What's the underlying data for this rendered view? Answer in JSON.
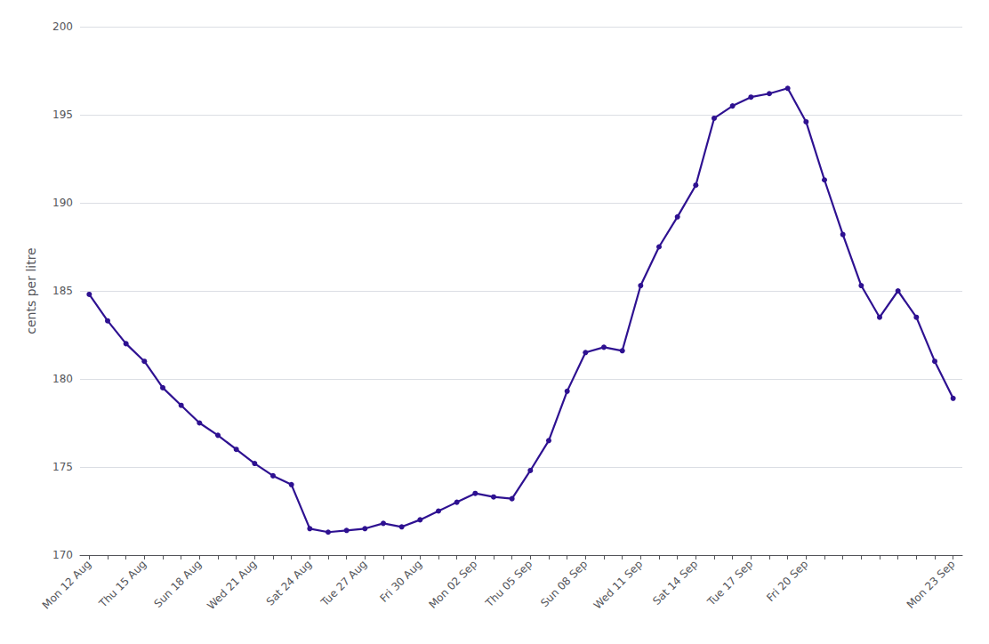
{
  "chart_data": {
    "type": "line",
    "ylabel": "cents per litre",
    "categories": [
      "Mon 12 Aug",
      null,
      null,
      "Thu 15 Aug",
      null,
      null,
      "Sun 18 Aug",
      null,
      null,
      "Wed 21 Aug",
      null,
      null,
      "Sat 24 Aug",
      null,
      null,
      "Tue 27 Aug",
      null,
      null,
      "Fri 30 Aug",
      null,
      null,
      "Mon 02 Sep",
      null,
      null,
      "Thu 05 Sep",
      null,
      null,
      "Sun 08 Sep",
      null,
      null,
      "Wed 11 Sep",
      null,
      null,
      "Sat 14 Sep",
      null,
      null,
      "Tue 17 Sep",
      null,
      null,
      "Fri 20 Sep",
      null,
      null,
      null,
      null,
      null,
      null,
      null,
      "Mon 23 Sep"
    ],
    "values": [
      184.8,
      183.3,
      182.0,
      181.0,
      179.5,
      178.5,
      177.5,
      176.8,
      176.0,
      175.2,
      174.5,
      174.0,
      171.5,
      171.3,
      171.4,
      171.5,
      171.8,
      171.6,
      172.0,
      172.5,
      173.0,
      173.5,
      173.3,
      173.2,
      174.8,
      176.5,
      179.3,
      181.5,
      181.8,
      181.6,
      185.3,
      187.5,
      189.2,
      191.0,
      194.8,
      195.5,
      196.0,
      196.2,
      196.5,
      194.6,
      191.3,
      188.2,
      185.3,
      183.5,
      185.0,
      183.5,
      181.0,
      178.9
    ],
    "color": "#2e1191",
    "marker": "circle",
    "ylim": [
      170,
      200
    ],
    "yticks": [
      170,
      175,
      180,
      185,
      190,
      195,
      200
    ],
    "grid": true
  }
}
